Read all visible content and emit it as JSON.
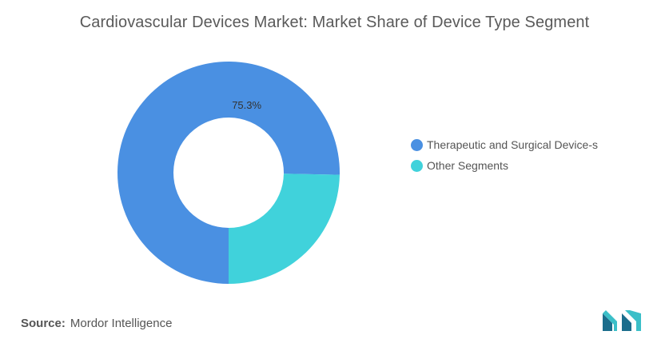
{
  "chart_data": {
    "type": "pie",
    "variant": "donut",
    "title": "Cardiovascular Devices Market: Market Share of Device Type Segment",
    "categories": [
      "Therapeutic and Surgical Device-s",
      "Other Segments"
    ],
    "values": [
      75.3,
      24.7
    ],
    "data_labels": [
      "75.3%",
      ""
    ],
    "colors": [
      "#4a90e2",
      "#40d2db"
    ],
    "legend_position": "right"
  },
  "source": {
    "label": "Source:",
    "value": "Mordor Intelligence"
  },
  "logo": {
    "colors": [
      "#1b6d8c",
      "#3bbfc8"
    ]
  }
}
